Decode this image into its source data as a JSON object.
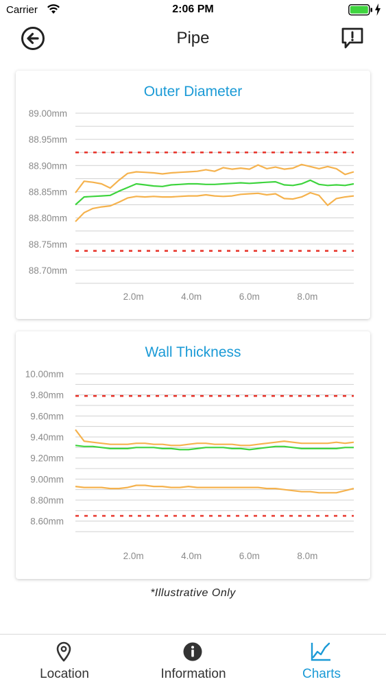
{
  "status_bar": {
    "carrier": "Carrier",
    "time": "2:06 PM",
    "icons": [
      "wifi-icon",
      "battery-icon",
      "charging-icon"
    ]
  },
  "nav": {
    "title": "Pipe",
    "back_icon": "back-arrow-circle-icon",
    "report_icon": "report-exclamation-icon"
  },
  "colors": {
    "accent": "#1a9ad6",
    "limit": "#e8362c",
    "band": "#f5b24d",
    "mean": "#3ed43e",
    "grid": "#d0d0d0",
    "axis_text": "#8a8a8a"
  },
  "chart_data": [
    {
      "type": "line",
      "title": "Outer Diameter",
      "xlabel": "",
      "ylabel": "",
      "x_ticks": [
        "2.0m",
        "4.0m",
        "6.0m",
        "8.0m"
      ],
      "x_tick_values": [
        2,
        4,
        6,
        8
      ],
      "xlim": [
        0,
        9.6
      ],
      "y_ticks": [
        "89.00mm",
        "88.95mm",
        "88.90mm",
        "88.85mm",
        "88.80mm",
        "88.75mm",
        "88.70mm"
      ],
      "ylim": [
        88.675,
        89.0
      ],
      "grid": true,
      "x": [
        0.0,
        0.3,
        0.6,
        0.9,
        1.2,
        1.5,
        1.8,
        2.1,
        2.4,
        2.7,
        3.0,
        3.3,
        3.6,
        3.9,
        4.2,
        4.5,
        4.8,
        5.1,
        5.4,
        5.7,
        6.0,
        6.3,
        6.6,
        6.9,
        7.2,
        7.5,
        7.8,
        8.1,
        8.4,
        8.7,
        9.0,
        9.3,
        9.6
      ],
      "series": [
        {
          "role": "upper_limit",
          "style": "dashed",
          "values": [
            88.925,
            88.925,
            88.925,
            88.925,
            88.925,
            88.925,
            88.925,
            88.925,
            88.925,
            88.925,
            88.925,
            88.925,
            88.925,
            88.925,
            88.925,
            88.925,
            88.925,
            88.925,
            88.925,
            88.925,
            88.925,
            88.925,
            88.925,
            88.925,
            88.925,
            88.925,
            88.925,
            88.925,
            88.925,
            88.925,
            88.925,
            88.925,
            88.925
          ]
        },
        {
          "role": "upper_band",
          "style": "solid",
          "values": [
            88.848,
            88.87,
            88.868,
            88.865,
            88.857,
            88.872,
            88.885,
            88.888,
            88.887,
            88.886,
            88.884,
            88.886,
            88.887,
            88.888,
            88.889,
            88.892,
            88.889,
            88.896,
            88.893,
            88.895,
            88.893,
            88.901,
            88.894,
            88.897,
            88.893,
            88.895,
            88.902,
            88.898,
            88.894,
            88.898,
            88.894,
            88.883,
            88.888
          ]
        },
        {
          "role": "mean",
          "style": "solid",
          "values": [
            88.825,
            88.84,
            88.841,
            88.842,
            88.843,
            88.851,
            88.858,
            88.865,
            88.863,
            88.861,
            88.86,
            88.863,
            88.864,
            88.865,
            88.865,
            88.864,
            88.864,
            88.865,
            88.866,
            88.867,
            88.866,
            88.867,
            88.868,
            88.869,
            88.863,
            88.862,
            88.865,
            88.872,
            88.864,
            88.862,
            88.863,
            88.862,
            88.865
          ]
        },
        {
          "role": "lower_band",
          "style": "solid",
          "values": [
            88.793,
            88.81,
            88.818,
            88.821,
            88.823,
            88.83,
            88.838,
            88.841,
            88.84,
            88.841,
            88.84,
            88.84,
            88.841,
            88.842,
            88.842,
            88.844,
            88.842,
            88.841,
            88.842,
            88.845,
            88.846,
            88.847,
            88.844,
            88.846,
            88.837,
            88.836,
            88.84,
            88.848,
            88.843,
            88.824,
            88.837,
            88.84,
            88.842
          ]
        },
        {
          "role": "lower_limit",
          "style": "dashed",
          "values": [
            88.737,
            88.737,
            88.737,
            88.737,
            88.737,
            88.737,
            88.737,
            88.737,
            88.737,
            88.737,
            88.737,
            88.737,
            88.737,
            88.737,
            88.737,
            88.737,
            88.737,
            88.737,
            88.737,
            88.737,
            88.737,
            88.737,
            88.737,
            88.737,
            88.737,
            88.737,
            88.737,
            88.737,
            88.737,
            88.737,
            88.737,
            88.737,
            88.737
          ]
        }
      ]
    },
    {
      "type": "line",
      "title": "Wall Thickness",
      "xlabel": "",
      "ylabel": "",
      "x_ticks": [
        "2.0m",
        "4.0m",
        "6.0m",
        "8.0m"
      ],
      "x_tick_values": [
        2,
        4,
        6,
        8
      ],
      "xlim": [
        0,
        9.6
      ],
      "y_ticks": [
        "10.00mm",
        "9.80mm",
        "9.60mm",
        "9.40mm",
        "9.20mm",
        "9.00mm",
        "8.80mm",
        "8.60mm"
      ],
      "ylim": [
        8.5,
        10.0
      ],
      "grid": true,
      "x": [
        0.0,
        0.3,
        0.6,
        0.9,
        1.2,
        1.5,
        1.8,
        2.1,
        2.4,
        2.7,
        3.0,
        3.3,
        3.6,
        3.9,
        4.2,
        4.5,
        4.8,
        5.1,
        5.4,
        5.7,
        6.0,
        6.3,
        6.6,
        6.9,
        7.2,
        7.5,
        7.8,
        8.1,
        8.4,
        8.7,
        9.0,
        9.3,
        9.6
      ],
      "series": [
        {
          "role": "upper_limit",
          "style": "dashed",
          "values": [
            9.79,
            9.79,
            9.79,
            9.79,
            9.79,
            9.79,
            9.79,
            9.79,
            9.79,
            9.79,
            9.79,
            9.79,
            9.79,
            9.79,
            9.79,
            9.79,
            9.79,
            9.79,
            9.79,
            9.79,
            9.79,
            9.79,
            9.79,
            9.79,
            9.79,
            9.79,
            9.79,
            9.79,
            9.79,
            9.79,
            9.79,
            9.79,
            9.79
          ]
        },
        {
          "role": "upper_band",
          "style": "solid",
          "values": [
            9.47,
            9.36,
            9.35,
            9.34,
            9.33,
            9.33,
            9.33,
            9.34,
            9.34,
            9.33,
            9.33,
            9.32,
            9.32,
            9.33,
            9.34,
            9.34,
            9.33,
            9.33,
            9.33,
            9.32,
            9.32,
            9.33,
            9.34,
            9.35,
            9.36,
            9.35,
            9.34,
            9.34,
            9.34,
            9.34,
            9.35,
            9.34,
            9.35
          ]
        },
        {
          "role": "mean",
          "style": "solid",
          "values": [
            9.32,
            9.31,
            9.31,
            9.3,
            9.29,
            9.29,
            9.29,
            9.3,
            9.3,
            9.3,
            9.29,
            9.29,
            9.28,
            9.28,
            9.29,
            9.3,
            9.3,
            9.3,
            9.29,
            9.29,
            9.28,
            9.29,
            9.3,
            9.31,
            9.31,
            9.3,
            9.29,
            9.29,
            9.29,
            9.29,
            9.29,
            9.3,
            9.3
          ]
        },
        {
          "role": "lower_band",
          "style": "solid",
          "values": [
            8.93,
            8.92,
            8.92,
            8.92,
            8.91,
            8.91,
            8.92,
            8.94,
            8.94,
            8.93,
            8.93,
            8.92,
            8.92,
            8.93,
            8.92,
            8.92,
            8.92,
            8.92,
            8.92,
            8.92,
            8.92,
            8.92,
            8.91,
            8.91,
            8.9,
            8.89,
            8.88,
            8.88,
            8.87,
            8.87,
            8.87,
            8.89,
            8.91
          ]
        },
        {
          "role": "lower_limit",
          "style": "dashed",
          "values": [
            8.65,
            8.65,
            8.65,
            8.65,
            8.65,
            8.65,
            8.65,
            8.65,
            8.65,
            8.65,
            8.65,
            8.65,
            8.65,
            8.65,
            8.65,
            8.65,
            8.65,
            8.65,
            8.65,
            8.65,
            8.65,
            8.65,
            8.65,
            8.65,
            8.65,
            8.65,
            8.65,
            8.65,
            8.65,
            8.65,
            8.65,
            8.65,
            8.65
          ]
        }
      ]
    }
  ],
  "footnote": "*Illustrative Only",
  "tabs": [
    {
      "label": "Location",
      "icon": "location-pin-icon",
      "active": false
    },
    {
      "label": "Information",
      "icon": "info-icon",
      "active": false
    },
    {
      "label": "Charts",
      "icon": "line-chart-icon",
      "active": true
    }
  ]
}
